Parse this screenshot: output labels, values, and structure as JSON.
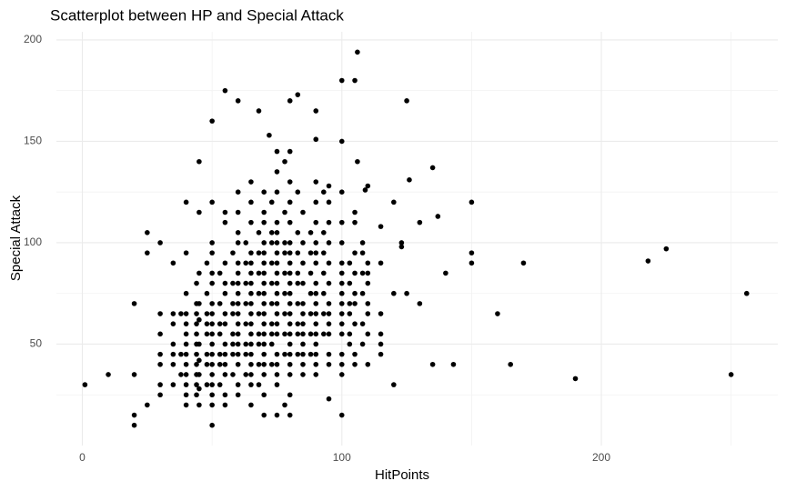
{
  "chart_data": {
    "type": "scatter",
    "title": "Scatterplot between HP and Special Attack",
    "x_label": "HitPoints",
    "y_label": "Special Attack",
    "xlim": [
      -10,
      268
    ],
    "ylim": [
      0,
      204
    ],
    "xticks": [
      0,
      100,
      200
    ],
    "yticks": [
      50,
      100,
      150,
      200
    ],
    "grid": true,
    "color": "#000000",
    "x": [
      1,
      10,
      20,
      20,
      20,
      20,
      25,
      25,
      25,
      30,
      35,
      45,
      50,
      50,
      55,
      60,
      68,
      72,
      80,
      83,
      90,
      100,
      105,
      106,
      125,
      135,
      137,
      126,
      150,
      150,
      150,
      140,
      130,
      170,
      218,
      225,
      256,
      250,
      190,
      165,
      160,
      143,
      135,
      120,
      95,
      100,
      130,
      125,
      120,
      115,
      120,
      123,
      123,
      110,
      109,
      106,
      100,
      90,
      30,
      30,
      30,
      30,
      30,
      30,
      35,
      35,
      35,
      35,
      35,
      35,
      38,
      38,
      38,
      40,
      40,
      40,
      40,
      40,
      40,
      40,
      40,
      40,
      40,
      40,
      40,
      40,
      44,
      44,
      44,
      44,
      44,
      44,
      44,
      44,
      44,
      44,
      44,
      45,
      45,
      45,
      45,
      45,
      45,
      45,
      45,
      45,
      48,
      48,
      48,
      48,
      48,
      48,
      48,
      48,
      50,
      50,
      50,
      50,
      50,
      50,
      50,
      50,
      50,
      50,
      50,
      50,
      50,
      50,
      50,
      50,
      53,
      53,
      53,
      53,
      53,
      53,
      53,
      55,
      55,
      55,
      55,
      55,
      55,
      55,
      55,
      55,
      55,
      55,
      55,
      55,
      58,
      58,
      58,
      58,
      58,
      58,
      58,
      58,
      60,
      60,
      60,
      60,
      60,
      60,
      60,
      60,
      60,
      60,
      60,
      60,
      60,
      60,
      60,
      60,
      60,
      63,
      63,
      63,
      63,
      63,
      63,
      63,
      63,
      65,
      65,
      65,
      65,
      65,
      65,
      65,
      65,
      65,
      65,
      65,
      65,
      65,
      65,
      65,
      65,
      65,
      65,
      68,
      68,
      68,
      68,
      68,
      68,
      68,
      68,
      68,
      70,
      70,
      70,
      70,
      70,
      70,
      70,
      70,
      70,
      70,
      70,
      70,
      70,
      70,
      70,
      70,
      70,
      70,
      70,
      73,
      73,
      73,
      73,
      73,
      73,
      73,
      73,
      73,
      73,
      75,
      75,
      75,
      75,
      75,
      75,
      75,
      75,
      75,
      75,
      75,
      75,
      75,
      75,
      75,
      75,
      75,
      75,
      75,
      75,
      78,
      78,
      78,
      78,
      78,
      78,
      78,
      78,
      78,
      78,
      80,
      80,
      80,
      80,
      80,
      80,
      80,
      80,
      80,
      80,
      80,
      80,
      80,
      80,
      80,
      80,
      80,
      80,
      80,
      80,
      83,
      83,
      83,
      83,
      83,
      83,
      83,
      83,
      83,
      85,
      85,
      85,
      85,
      85,
      85,
      85,
      85,
      85,
      85,
      85,
      85,
      88,
      88,
      88,
      88,
      88,
      88,
      88,
      90,
      90,
      90,
      90,
      90,
      90,
      90,
      90,
      90,
      90,
      90,
      90,
      90,
      90,
      90,
      90,
      93,
      93,
      93,
      93,
      93,
      93,
      93,
      95,
      95,
      95,
      95,
      95,
      95,
      95,
      95,
      95,
      95,
      95,
      95,
      100,
      100,
      100,
      100,
      100,
      100,
      100,
      100,
      100,
      100,
      100,
      100,
      100,
      100,
      103,
      103,
      103,
      103,
      103,
      103,
      105,
      105,
      105,
      105,
      105,
      105,
      105,
      105,
      105,
      108,
      108,
      108,
      108,
      108,
      108,
      110,
      110,
      110,
      110,
      110,
      110,
      110,
      115,
      115,
      115,
      115,
      115
    ],
    "values": [
      30,
      35,
      35,
      70,
      15,
      10,
      20,
      105,
      95,
      100,
      90,
      140,
      160,
      10,
      175,
      170,
      165,
      153,
      170,
      173,
      165,
      180,
      180,
      194,
      170,
      137,
      113,
      131,
      120,
      95,
      90,
      85,
      110,
      90,
      91,
      97,
      75,
      35,
      33,
      40,
      65,
      40,
      40,
      30,
      23,
      15,
      70,
      75,
      75,
      108,
      120,
      98,
      100,
      128,
      126,
      140,
      150,
      151,
      25,
      30,
      40,
      45,
      55,
      65,
      30,
      40,
      45,
      50,
      60,
      65,
      35,
      45,
      65,
      20,
      25,
      30,
      35,
      40,
      45,
      50,
      55,
      60,
      65,
      75,
      95,
      120,
      25,
      30,
      35,
      40,
      45,
      50,
      55,
      60,
      65,
      70,
      80,
      20,
      28,
      35,
      42,
      50,
      62,
      70,
      85,
      115,
      30,
      40,
      45,
      55,
      60,
      65,
      75,
      90,
      20,
      25,
      30,
      35,
      40,
      45,
      50,
      55,
      60,
      65,
      70,
      80,
      85,
      95,
      100,
      120,
      30,
      40,
      45,
      55,
      60,
      70,
      85,
      20,
      25,
      35,
      40,
      45,
      50,
      60,
      65,
      75,
      80,
      90,
      110,
      115,
      35,
      45,
      50,
      55,
      65,
      70,
      80,
      95,
      25,
      30,
      40,
      45,
      50,
      55,
      60,
      65,
      70,
      75,
      80,
      85,
      90,
      100,
      105,
      115,
      125,
      35,
      45,
      50,
      60,
      70,
      80,
      90,
      100,
      20,
      30,
      35,
      40,
      45,
      50,
      55,
      60,
      65,
      70,
      75,
      80,
      85,
      90,
      95,
      110,
      120,
      130,
      30,
      40,
      50,
      55,
      65,
      75,
      85,
      95,
      105,
      15,
      25,
      35,
      40,
      45,
      50,
      55,
      60,
      65,
      70,
      75,
      80,
      85,
      90,
      95,
      100,
      110,
      115,
      125,
      40,
      50,
      55,
      60,
      70,
      80,
      90,
      100,
      105,
      120,
      15,
      30,
      35,
      40,
      45,
      55,
      60,
      65,
      70,
      75,
      80,
      85,
      90,
      95,
      100,
      105,
      110,
      125,
      135,
      145,
      20,
      45,
      55,
      65,
      75,
      85,
      95,
      100,
      115,
      140,
      15,
      25,
      35,
      40,
      45,
      50,
      55,
      60,
      65,
      70,
      75,
      80,
      85,
      90,
      95,
      100,
      110,
      120,
      130,
      145,
      45,
      55,
      60,
      70,
      80,
      85,
      95,
      105,
      125,
      35,
      40,
      45,
      50,
      55,
      60,
      65,
      70,
      80,
      90,
      100,
      115,
      45,
      55,
      65,
      75,
      85,
      95,
      105,
      35,
      40,
      45,
      50,
      55,
      60,
      65,
      70,
      75,
      80,
      90,
      95,
      100,
      110,
      120,
      130,
      55,
      65,
      75,
      85,
      95,
      105,
      125,
      40,
      45,
      55,
      60,
      65,
      70,
      80,
      90,
      100,
      110,
      120,
      128,
      35,
      40,
      45,
      55,
      60,
      65,
      70,
      75,
      80,
      85,
      90,
      100,
      110,
      125,
      50,
      55,
      65,
      70,
      80,
      90,
      40,
      45,
      60,
      70,
      75,
      85,
      95,
      110,
      115,
      50,
      60,
      75,
      85,
      95,
      100,
      40,
      55,
      65,
      70,
      80,
      85,
      90,
      45,
      50,
      55,
      65,
      90
    ]
  }
}
